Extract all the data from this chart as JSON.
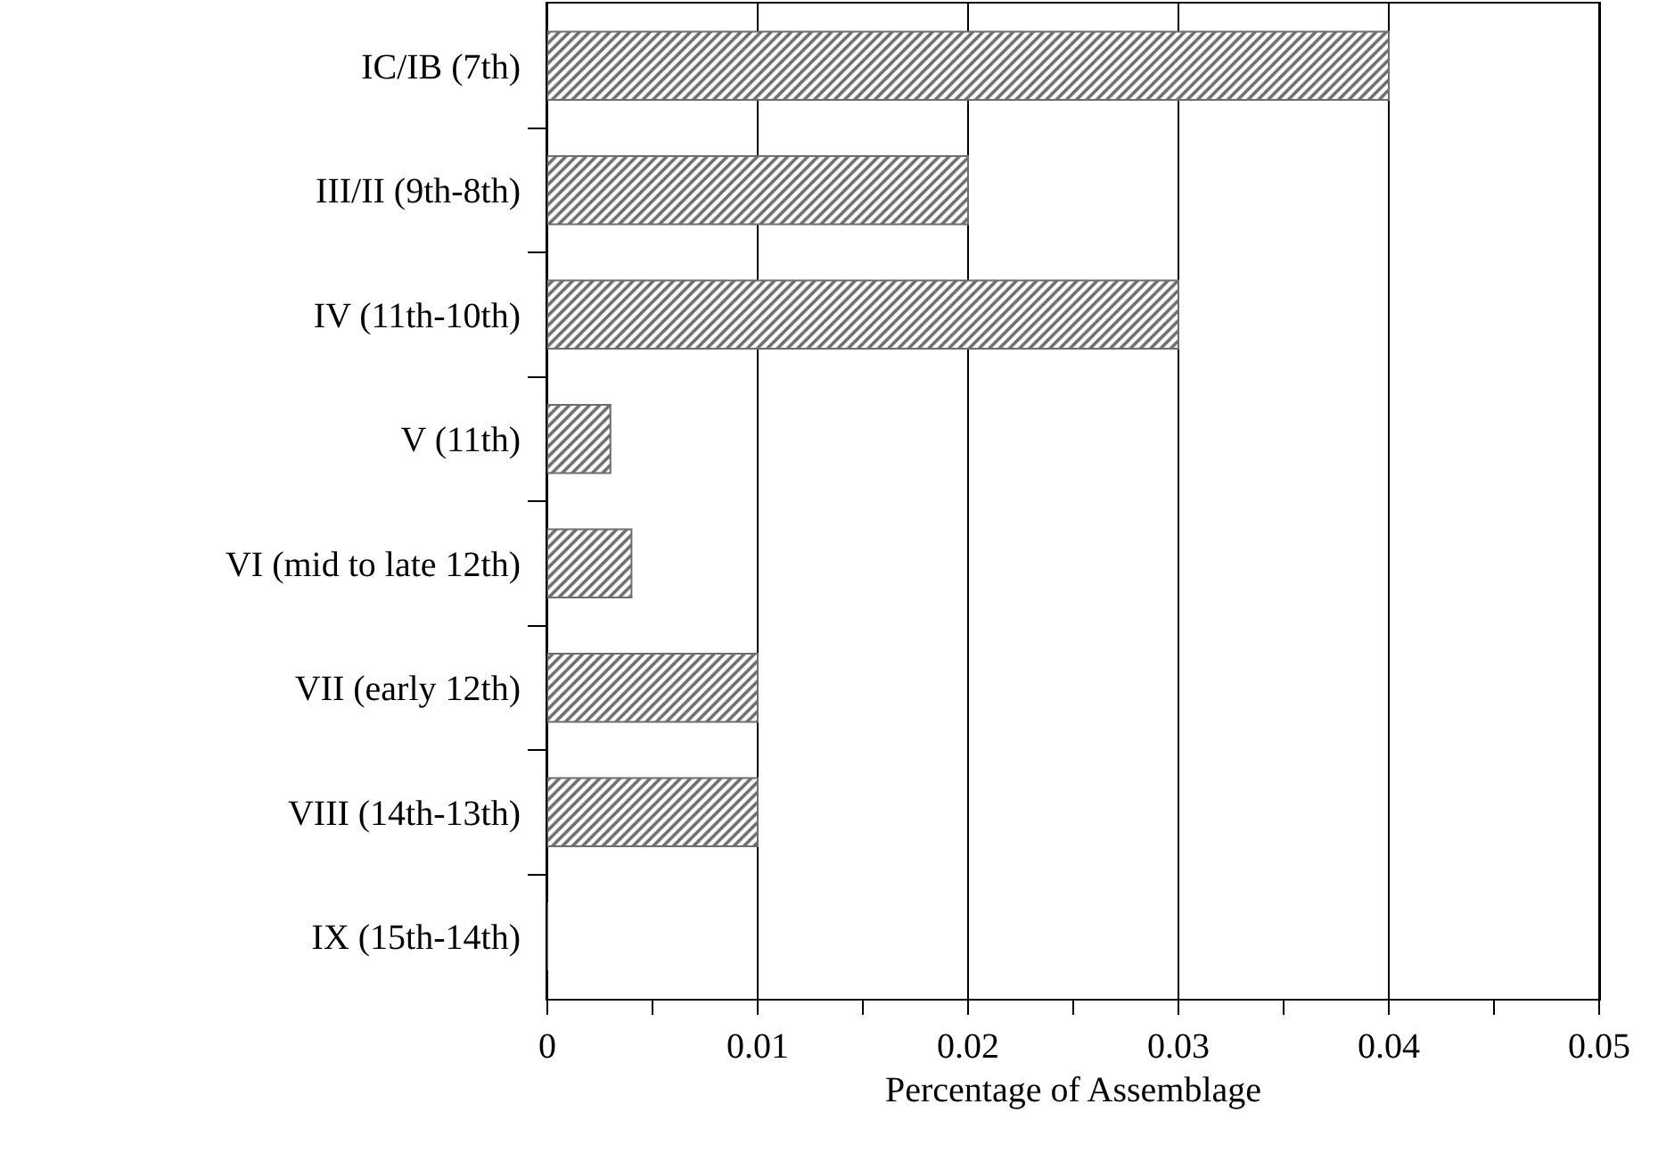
{
  "chart_data": {
    "type": "bar",
    "orientation": "horizontal",
    "xlabel": "Percentage of Assemblage",
    "categories": [
      "IC/IB (7th)",
      "III/II (9th-8th)",
      "IV (11th-10th)",
      "V (11th)",
      "VI (mid to late 12th)",
      "VII (early 12th)",
      "VIII (14th-13th)",
      "IX (15th-14th)"
    ],
    "values": [
      0.04,
      0.02,
      0.03,
      0.003,
      0.004,
      0.01,
      0.01,
      0
    ],
    "color": "#6e6e6e",
    "xlim": [
      0,
      0.05
    ],
    "xticks": [
      0,
      {
        "value": 0.005,
        "label": null
      },
      0.01,
      {
        "value": 0.015,
        "label": null
      },
      0.02,
      {
        "value": 0.025,
        "label": null
      },
      0.03,
      {
        "value": 0.035,
        "label": null
      },
      0.04,
      {
        "value": 0.045,
        "label": null
      },
      0.05
    ],
    "grid": "x",
    "legend": false
  }
}
